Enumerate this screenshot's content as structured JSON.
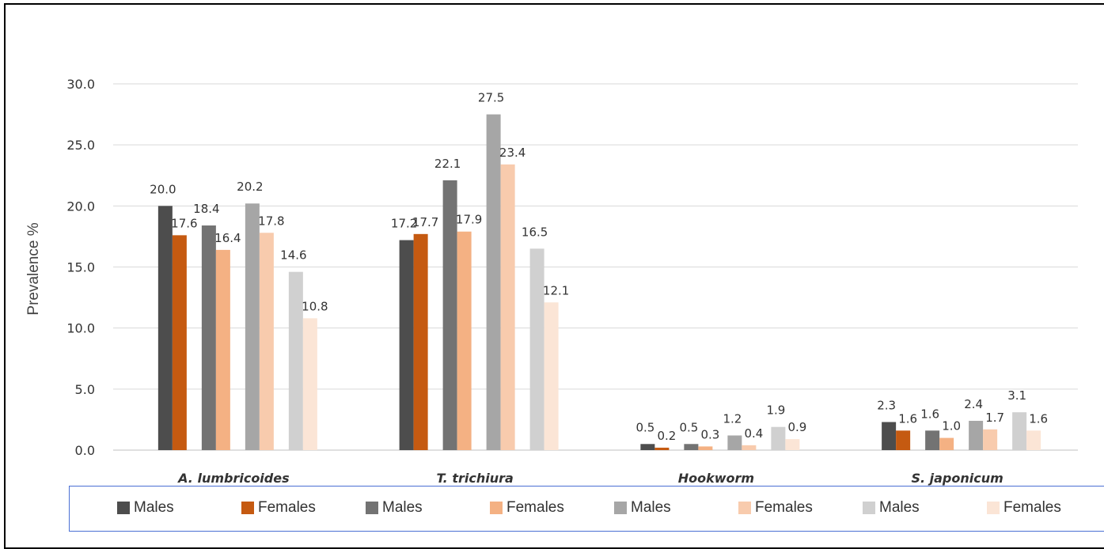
{
  "chart_data": {
    "type": "bar",
    "title": "",
    "xlabel": "",
    "ylabel": "Prevalence %",
    "ylim": [
      0,
      30
    ],
    "yticks": [
      "0.0",
      "5.0",
      "10.0",
      "15.0",
      "20.0",
      "25.0",
      "30.0"
    ],
    "grid": true,
    "legend_position": "bottom",
    "categories": [
      "A. lumbricoides",
      "T. trichiura",
      "Hookworm",
      "S. japonicum"
    ],
    "series": [
      {
        "name": "Males",
        "color": "#4d4d4d",
        "values": [
          20.0,
          17.2,
          0.5,
          2.3
        ],
        "labels": [
          "20.0",
          "17.2",
          "0.5",
          "2.3"
        ]
      },
      {
        "name": "Females",
        "color": "#c55a11",
        "values": [
          17.6,
          17.7,
          0.2,
          1.6
        ],
        "labels": [
          "17.6",
          "17.7",
          "0.2",
          "1.6"
        ]
      },
      {
        "name": "Males",
        "color": "#737373",
        "values": [
          18.4,
          22.1,
          0.5,
          1.6
        ],
        "labels": [
          "18.4",
          "22.1",
          "0.5",
          "1.6"
        ]
      },
      {
        "name": "Females",
        "color": "#f4b183",
        "values": [
          16.4,
          17.9,
          0.3,
          1.0
        ],
        "labels": [
          "16.4",
          "17.9",
          "0.3",
          "1.0"
        ]
      },
      {
        "name": "Males",
        "color": "#a6a6a6",
        "values": [
          20.2,
          27.5,
          1.2,
          2.4
        ],
        "labels": [
          "20.2",
          "27.5",
          "1.2",
          "2.4"
        ]
      },
      {
        "name": "Females",
        "color": "#f8cbad",
        "values": [
          17.8,
          23.4,
          0.4,
          1.7
        ],
        "labels": [
          "17.8",
          "23.4",
          "0.4",
          "1.7"
        ]
      },
      {
        "name": "Males",
        "color": "#d0d0d0",
        "values": [
          14.6,
          16.5,
          1.9,
          3.1
        ],
        "labels": [
          "14.6",
          "16.5",
          "1.9",
          "3.1"
        ]
      },
      {
        "name": "Females",
        "color": "#fbe5d6",
        "values": [
          10.8,
          12.1,
          0.9,
          1.6
        ],
        "labels": [
          "10.8",
          "12.1",
          "0.9",
          "1.6"
        ]
      }
    ]
  }
}
